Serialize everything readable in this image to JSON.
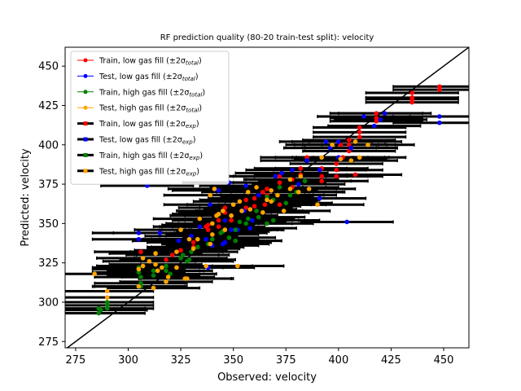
{
  "chart_data": {
    "type": "scatter",
    "title": "RF prediction quality (80-20 train-test split): velocity",
    "xlabel": "Observed: velocity",
    "ylabel": "Predicted: velocity",
    "xlim": [
      270,
      462
    ],
    "ylim": [
      271,
      462
    ],
    "xticks": [
      275,
      300,
      325,
      350,
      375,
      400,
      425,
      450
    ],
    "yticks": [
      275,
      300,
      325,
      350,
      375,
      400,
      425,
      450
    ],
    "identity_line": true,
    "legend_position": "top-left",
    "legend": [
      {
        "prefix": "Train, low gas fill (±2σ",
        "sub": "total",
        "suffix": ")",
        "color": "#ff0000",
        "style": "errorbar"
      },
      {
        "prefix": "Test, low gas fill (±2σ",
        "sub": "total",
        "suffix": ")",
        "color": "#0000ff",
        "style": "errorbar"
      },
      {
        "prefix": "Train, high gas fill (±2σ",
        "sub": "total",
        "suffix": ")",
        "color": "#008000",
        "style": "errorbar"
      },
      {
        "prefix": "Test, high gas fill (±2σ",
        "sub": "total",
        "suffix": ")",
        "color": "#ffa500",
        "style": "errorbar"
      },
      {
        "prefix": "Train, low gas fill (±2σ",
        "sub": "exp",
        "suffix": ")",
        "color": "#ff0000",
        "style": "errorbar-exp"
      },
      {
        "prefix": "Test, low gas fill (±2σ",
        "sub": "exp",
        "suffix": ")",
        "color": "#0000ff",
        "style": "errorbar-exp"
      },
      {
        "prefix": "Train, high gas fill (±2σ",
        "sub": "exp",
        "suffix": ")",
        "color": "#008000",
        "style": "errorbar-exp"
      },
      {
        "prefix": "Test, high gas fill (±2σ",
        "sub": "exp",
        "suffix": ")",
        "color": "#ffa500",
        "style": "errorbar-exp"
      }
    ],
    "series": [
      {
        "name": "Train, low gas fill",
        "color": "#ff0000",
        "xerr": 22,
        "points": [
          [
            435,
            427
          ],
          [
            435,
            430
          ],
          [
            435,
            433
          ],
          [
            435,
            429
          ],
          [
            448,
            437
          ],
          [
            448,
            435
          ],
          [
            418,
            415
          ],
          [
            418,
            420
          ],
          [
            418,
            417
          ],
          [
            410,
            408
          ],
          [
            410,
            405
          ],
          [
            410,
            411
          ],
          [
            405,
            400
          ],
          [
            405,
            396
          ],
          [
            405,
            403
          ],
          [
            402,
            392
          ],
          [
            399,
            384
          ],
          [
            399,
            380
          ],
          [
            399,
            388
          ],
          [
            392,
            385
          ],
          [
            392,
            380
          ],
          [
            392,
            377
          ],
          [
            382,
            385
          ],
          [
            382,
            381
          ],
          [
            378,
            378
          ],
          [
            378,
            373
          ],
          [
            372,
            380
          ],
          [
            372,
            376
          ],
          [
            366,
            372
          ],
          [
            366,
            368
          ],
          [
            365,
            362
          ],
          [
            360,
            366
          ],
          [
            360,
            361
          ],
          [
            356,
            365
          ],
          [
            356,
            360
          ],
          [
            349,
            355
          ],
          [
            349,
            352
          ],
          [
            346,
            360
          ],
          [
            346,
            357
          ],
          [
            343,
            352
          ],
          [
            343,
            348
          ],
          [
            338,
            346
          ],
          [
            338,
            349
          ],
          [
            337,
            348
          ],
          [
            331,
            338
          ],
          [
            331,
            335
          ],
          [
            325,
            333
          ],
          [
            321,
            330
          ],
          [
            318,
            327
          ],
          [
            306,
            332
          ],
          [
            342,
            355
          ],
          [
            385,
            392
          ],
          [
            372,
            362
          ],
          [
            364,
            370
          ],
          [
            408,
            381
          ],
          [
            406,
            398
          ],
          [
            401,
            400
          ]
        ]
      },
      {
        "name": "Test, low gas fill",
        "color": "#0000ff",
        "xerr": 22,
        "points": [
          [
            448,
            418
          ],
          [
            448,
            414
          ],
          [
            422,
            420
          ],
          [
            420,
            416
          ],
          [
            417,
            412
          ],
          [
            412,
            418
          ],
          [
            394,
            402
          ],
          [
            396,
            398
          ],
          [
            400,
            402
          ],
          [
            406,
            398
          ],
          [
            400,
            392
          ],
          [
            391,
            384
          ],
          [
            378,
            384
          ],
          [
            385,
            390
          ],
          [
            373,
            382
          ],
          [
            370,
            380
          ],
          [
            356,
            374
          ],
          [
            348,
            376
          ],
          [
            343,
            371
          ],
          [
            339,
            362
          ],
          [
            346,
            352
          ],
          [
            352,
            346
          ],
          [
            355,
            358
          ],
          [
            359,
            352
          ],
          [
            358,
            347
          ],
          [
            349,
            346
          ],
          [
            346,
            338
          ],
          [
            340,
            336
          ],
          [
            337,
            340
          ],
          [
            334,
            348
          ],
          [
            345,
            337
          ],
          [
            330,
            342
          ],
          [
            324,
            339
          ],
          [
            315,
            344
          ],
          [
            305,
            344
          ],
          [
            305,
            340
          ],
          [
            309,
            374
          ],
          [
            338,
            322
          ],
          [
            362,
            368
          ],
          [
            381,
            375
          ],
          [
            391,
            366
          ],
          [
            404,
            351
          ]
        ]
      },
      {
        "name": "Train, high gas fill",
        "color": "#008000",
        "xerr": 22,
        "points": [
          [
            290,
            296
          ],
          [
            290,
            298
          ],
          [
            290,
            300
          ],
          [
            286,
            293
          ],
          [
            286,
            296
          ],
          [
            287,
            295
          ],
          [
            306,
            310
          ],
          [
            306,
            312
          ],
          [
            306,
            316
          ],
          [
            305,
            322
          ],
          [
            305,
            319
          ],
          [
            312,
            320
          ],
          [
            312,
            317
          ],
          [
            318,
            320
          ],
          [
            318,
            323
          ],
          [
            320,
            318
          ],
          [
            325,
            328
          ],
          [
            326,
            330
          ],
          [
            328,
            326
          ],
          [
            329,
            327
          ],
          [
            330,
            332
          ],
          [
            333,
            335
          ],
          [
            338,
            337
          ],
          [
            340,
            340
          ],
          [
            344,
            344
          ],
          [
            345,
            345
          ],
          [
            348,
            341
          ],
          [
            351,
            346
          ],
          [
            353,
            351
          ],
          [
            357,
            353
          ],
          [
            361,
            358
          ],
          [
            362,
            354
          ],
          [
            366,
            367
          ],
          [
            369,
            365
          ],
          [
            372,
            373
          ],
          [
            375,
            363
          ],
          [
            377,
            368
          ],
          [
            380,
            370
          ],
          [
            384,
            377
          ],
          [
            369,
            352
          ],
          [
            366,
            350
          ],
          [
            356,
            350
          ],
          [
            351,
            339
          ]
        ]
      },
      {
        "name": "Test, high gas fill",
        "color": "#ffa500",
        "xerr": 22,
        "points": [
          [
            290,
            307
          ],
          [
            290,
            303
          ],
          [
            284,
            318
          ],
          [
            305,
            321
          ],
          [
            305,
            310
          ],
          [
            307,
            323
          ],
          [
            307,
            328
          ],
          [
            310,
            326
          ],
          [
            312,
            309
          ],
          [
            313,
            331
          ],
          [
            313,
            324
          ],
          [
            314,
            320
          ],
          [
            316,
            322
          ],
          [
            318,
            313
          ],
          [
            319,
            316
          ],
          [
            323,
            322
          ],
          [
            323,
            332
          ],
          [
            327,
            315
          ],
          [
            328,
            315
          ],
          [
            329,
            340
          ],
          [
            331,
            334
          ],
          [
            333,
            340
          ],
          [
            334,
            353
          ],
          [
            337,
            323
          ],
          [
            339,
            337
          ],
          [
            340,
            343
          ],
          [
            340,
            350
          ],
          [
            342,
            355
          ],
          [
            343,
            356
          ],
          [
            346,
            346
          ],
          [
            349,
            355
          ],
          [
            350,
            362
          ],
          [
            353,
            364
          ],
          [
            354,
            358
          ],
          [
            358,
            359
          ],
          [
            361,
            373
          ],
          [
            364,
            357
          ],
          [
            366,
            365
          ],
          [
            368,
            364
          ],
          [
            371,
            368
          ],
          [
            374,
            358
          ],
          [
            377,
            372
          ],
          [
            377,
            378
          ],
          [
            381,
            370
          ],
          [
            382,
            380
          ],
          [
            386,
            372
          ],
          [
            390,
            362
          ],
          [
            392,
            392
          ],
          [
            397,
            400
          ],
          [
            401,
            391
          ],
          [
            406,
            390
          ],
          [
            408,
            402
          ],
          [
            410,
            392
          ],
          [
            414,
            400
          ],
          [
            352,
            323
          ],
          [
            345,
            358
          ],
          [
            341,
            372
          ],
          [
            339,
            368
          ],
          [
            368,
            371
          ],
          [
            357,
            370
          ],
          [
            325,
            346
          ]
        ]
      }
    ]
  }
}
